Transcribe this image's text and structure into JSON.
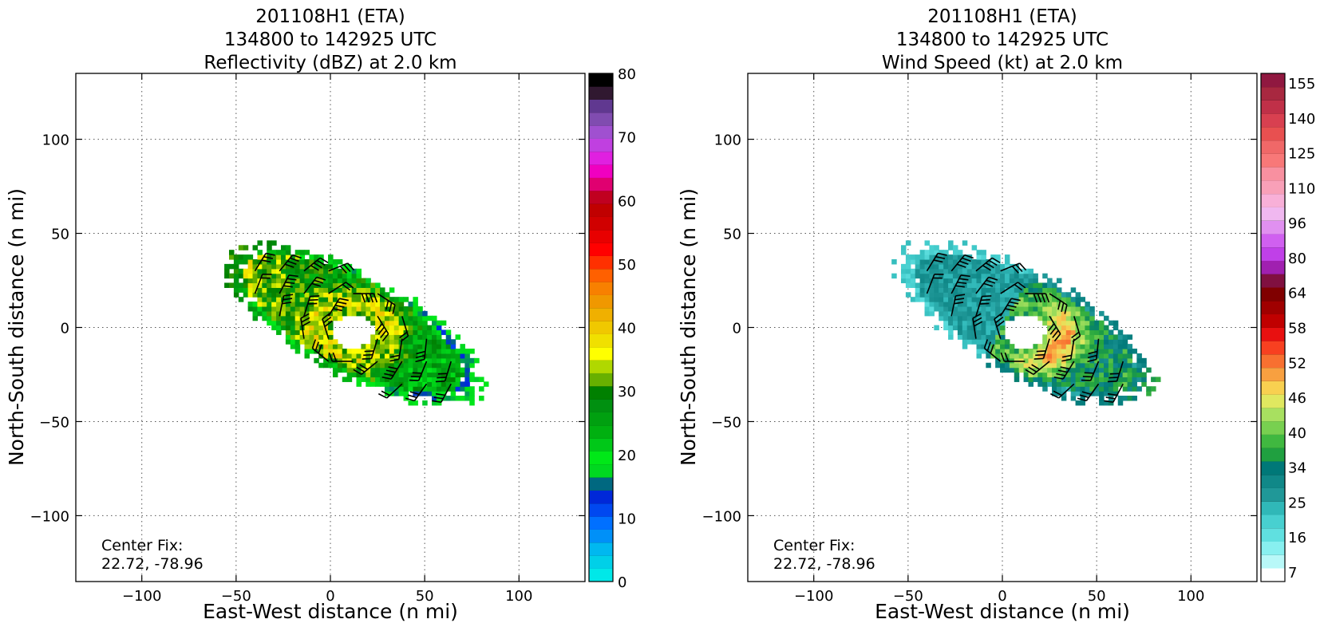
{
  "chart_data": [
    {
      "type": "heatmap",
      "title": [
        "201108H1 (ETA)",
        "134800 to 142925 UTC",
        "Reflectivity (dBZ) at 2.0 km"
      ],
      "xlabel": "East-West distance (n mi)",
      "ylabel": "North-South distance (n mi)",
      "xlim": [
        -135,
        135
      ],
      "ylim": [
        -135,
        135
      ],
      "xticks": [
        -100,
        -50,
        0,
        50,
        100
      ],
      "yticks": [
        -100,
        -50,
        0,
        50,
        100
      ],
      "tick_labels_x": [
        "−100",
        "−50",
        "0",
        "50",
        "100"
      ],
      "tick_labels_y": [
        "−100",
        "−50",
        "0",
        "50",
        "100"
      ],
      "grid": true,
      "annotation": [
        "Center Fix:",
        "22.72, -78.96"
      ],
      "colorbar": {
        "min": 0,
        "max": 80,
        "ticks": [
          0,
          10,
          20,
          30,
          40,
          50,
          60,
          70,
          80
        ],
        "tick_labels": [
          "0",
          "10",
          "20",
          "30",
          "40",
          "50",
          "60",
          "70",
          "80"
        ],
        "colors": [
          "#00e8e8",
          "#00d0e8",
          "#00b8f0",
          "#0090f8",
          "#0070ff",
          "#0048f0",
          "#0028d8",
          "#006880",
          "#00d820",
          "#00e818",
          "#00c818",
          "#00b010",
          "#00a010",
          "#009010",
          "#008000",
          "#68b000",
          "#b0d800",
          "#ffff00",
          "#f0e000",
          "#f0c800",
          "#f0b000",
          "#f09800",
          "#f88000",
          "#ff6000",
          "#ff3000",
          "#ff0000",
          "#e80000",
          "#d00000",
          "#c00000",
          "#c00020",
          "#e00070",
          "#f000c0",
          "#e020e0",
          "#c040e0",
          "#a050d0",
          "#804cb0",
          "#603890",
          "#301830",
          "#000000"
        ]
      }
    },
    {
      "type": "heatmap",
      "title": [
        "201108H1 (ETA)",
        "134800 to 142925 UTC",
        "Wind Speed (kt) at 2.0 km"
      ],
      "xlabel": "East-West distance (n mi)",
      "ylabel": "North-South distance (n mi)",
      "xlim": [
        -135,
        135
      ],
      "ylim": [
        -135,
        135
      ],
      "xticks": [
        -100,
        -50,
        0,
        50,
        100
      ],
      "yticks": [
        -100,
        -50,
        0,
        50,
        100
      ],
      "tick_labels_x": [
        "−100",
        "−50",
        "0",
        "50",
        "100"
      ],
      "tick_labels_y": [
        "−100",
        "−50",
        "0",
        "50",
        "100"
      ],
      "grid": true,
      "annotation": [
        "Center Fix:",
        "22.72, -78.96"
      ],
      "colorbar": {
        "tick_labels": [
          "7",
          "16",
          "25",
          "34",
          "40",
          "46",
          "52",
          "58",
          "64",
          "80",
          "96",
          "110",
          "125",
          "140",
          "155"
        ],
        "colors": [
          "#ffffff",
          "#b8f8f8",
          "#88f0f0",
          "#60e0e0",
          "#48d0d0",
          "#30b8b8",
          "#209898",
          "#108888",
          "#007878",
          "#20a040",
          "#40b840",
          "#78d050",
          "#a8e060",
          "#e0e860",
          "#f8d050",
          "#f8a040",
          "#f87030",
          "#f84020",
          "#e81010",
          "#c00000",
          "#a00000",
          "#800000",
          "#801040",
          "#a020b0",
          "#c040e8",
          "#d060f0",
          "#e090f0",
          "#f0b8f0",
          "#f8b0d8",
          "#f8a0b8",
          "#f890a0",
          "#f87878",
          "#f06868",
          "#e85050",
          "#d84050",
          "#c03048",
          "#a82840",
          "#901840"
        ]
      }
    }
  ]
}
